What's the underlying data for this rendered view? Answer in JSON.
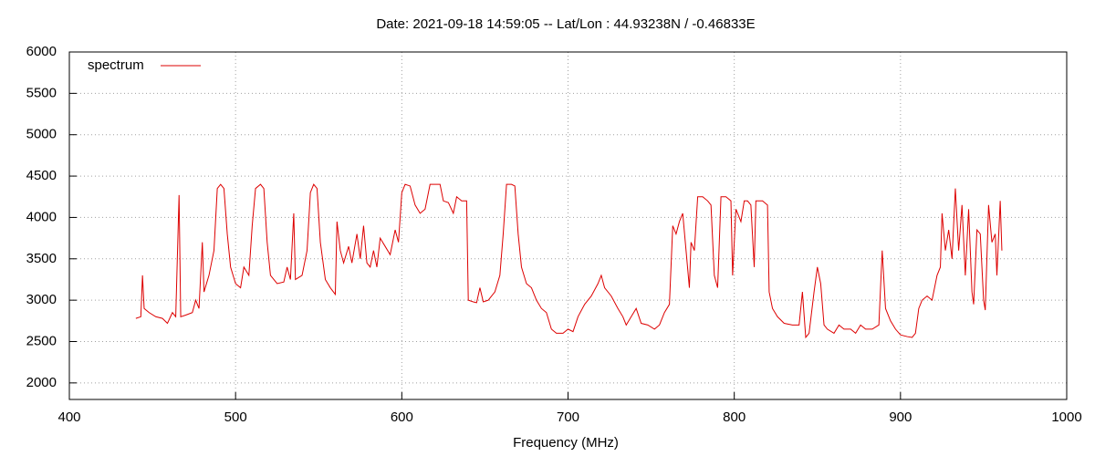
{
  "chart_data": {
    "type": "line",
    "title": "Date: 2021-09-18 14:59:05  --  Lat/Lon : 44.93238N / -0.46833E",
    "xlabel": "Frequency (MHz)",
    "xlim": [
      400,
      1000
    ],
    "xticks": [
      400,
      500,
      600,
      700,
      800,
      900,
      1000
    ],
    "ylim": [
      1800,
      6000
    ],
    "yticks": [
      2000,
      2500,
      3000,
      3500,
      4000,
      4500,
      5000,
      5500,
      6000
    ],
    "grid": true,
    "legend": "upper left",
    "x": [
      440,
      443,
      444,
      445,
      448,
      452,
      456,
      459,
      462,
      464,
      466,
      467,
      470,
      474,
      476,
      478,
      480,
      481,
      484,
      487,
      489,
      491,
      493,
      495,
      497,
      500,
      503,
      505,
      508,
      510,
      512,
      515,
      517,
      519,
      521,
      525,
      529,
      531,
      533,
      535,
      536,
      540,
      543,
      545,
      547,
      549,
      551,
      554,
      557,
      560,
      561,
      563,
      565,
      568,
      570,
      573,
      575,
      577,
      579,
      581,
      583,
      585,
      587,
      590,
      593,
      596,
      598,
      600,
      602,
      605,
      608,
      611,
      614,
      617,
      620,
      623,
      625,
      628,
      631,
      633,
      636,
      639,
      640,
      643,
      645,
      647,
      649,
      652,
      656,
      659,
      661,
      663,
      666,
      668,
      670,
      672,
      675,
      678,
      681,
      684,
      687,
      690,
      693,
      697,
      700,
      703,
      706,
      710,
      714,
      718,
      720,
      722,
      726,
      730,
      733,
      735,
      738,
      741,
      744,
      748,
      752,
      755,
      758,
      761,
      763,
      765,
      767,
      769,
      771,
      773,
      774,
      776,
      778,
      781,
      784,
      786,
      788,
      790,
      792,
      795,
      798,
      799,
      801,
      804,
      806,
      808,
      810,
      812,
      813,
      817,
      820,
      821,
      823,
      826,
      830,
      835,
      839,
      841,
      843,
      845,
      848,
      850,
      852,
      854,
      856,
      860,
      863,
      866,
      870,
      873,
      876,
      879,
      883,
      887,
      889,
      891,
      894,
      897,
      900,
      904,
      907,
      909,
      911,
      913,
      916,
      919,
      922,
      924,
      925,
      927,
      929,
      931,
      933,
      935,
      937,
      939,
      941,
      943,
      944,
      946,
      948,
      950,
      951,
      953,
      955,
      957,
      958,
      960,
      961
    ],
    "series": [
      {
        "name": "spectrum",
        "color": "#dd0000",
        "values": [
          2780,
          2800,
          3300,
          2900,
          2850,
          2800,
          2780,
          2720,
          2850,
          2800,
          4270,
          2800,
          2820,
          2850,
          3000,
          2900,
          3700,
          3100,
          3300,
          3600,
          4350,
          4400,
          4350,
          3800,
          3400,
          3200,
          3150,
          3400,
          3300,
          3900,
          4350,
          4400,
          4350,
          3700,
          3300,
          3200,
          3220,
          3400,
          3250,
          4050,
          3250,
          3300,
          3600,
          4300,
          4400,
          4350,
          3700,
          3250,
          3150,
          3070,
          3950,
          3600,
          3450,
          3650,
          3450,
          3800,
          3500,
          3900,
          3450,
          3400,
          3600,
          3400,
          3750,
          3650,
          3550,
          3850,
          3700,
          4300,
          4400,
          4380,
          4150,
          4050,
          4100,
          4400,
          4400,
          4400,
          4200,
          4180,
          4050,
          4250,
          4200,
          4200,
          3000,
          2980,
          2970,
          3150,
          2980,
          3000,
          3100,
          3300,
          3800,
          4400,
          4400,
          4380,
          3800,
          3400,
          3200,
          3150,
          3000,
          2900,
          2850,
          2650,
          2600,
          2600,
          2650,
          2620,
          2800,
          2950,
          3050,
          3200,
          3300,
          3150,
          3050,
          2900,
          2800,
          2700,
          2800,
          2900,
          2720,
          2700,
          2650,
          2700,
          2850,
          2950,
          3900,
          3800,
          3950,
          4050,
          3600,
          3150,
          3700,
          3600,
          4250,
          4250,
          4200,
          4150,
          3300,
          3150,
          4250,
          4250,
          4200,
          3300,
          4100,
          3950,
          4200,
          4200,
          4150,
          3400,
          4200,
          4200,
          4150,
          3100,
          2900,
          2800,
          2720,
          2700,
          2700,
          3100,
          2550,
          2600,
          3100,
          3400,
          3200,
          2700,
          2650,
          2600,
          2700,
          2650,
          2650,
          2600,
          2700,
          2650,
          2650,
          2700,
          3600,
          2900,
          2750,
          2650,
          2580,
          2560,
          2550,
          2600,
          2900,
          3000,
          3050,
          3000,
          3300,
          3400,
          4050,
          3600,
          3850,
          3500,
          4350,
          3600,
          4150,
          3300,
          4100,
          3100,
          2950,
          3850,
          3800,
          3000,
          2880,
          4150,
          3700,
          3800,
          3300,
          4200,
          3600
        ]
      }
    ]
  }
}
